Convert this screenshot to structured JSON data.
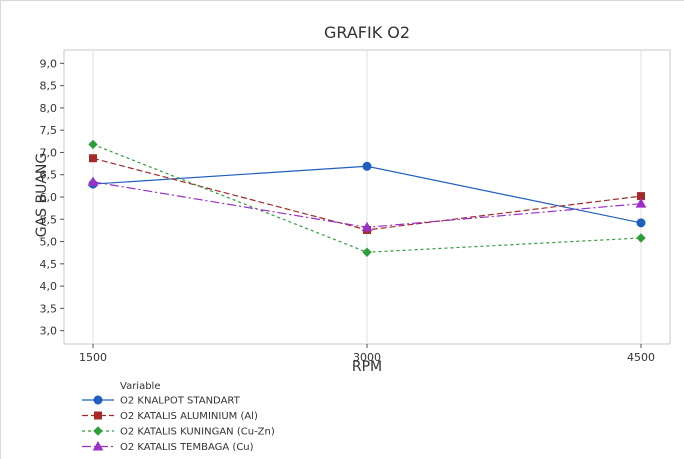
{
  "chart_data": {
    "type": "line",
    "title": "GRAFIK O2",
    "xlabel": "RPM",
    "ylabel": "GAS BUANG",
    "x": [
      1500,
      3000,
      4500
    ],
    "x_tick_labels": [
      "1500",
      "3000",
      "4500"
    ],
    "ylim": [
      2.7,
      9.3
    ],
    "y_ticks": [
      3.0,
      3.5,
      4.0,
      4.5,
      5.0,
      5.5,
      6.0,
      6.5,
      7.0,
      7.5,
      8.0,
      8.5,
      9.0
    ],
    "y_tick_labels": [
      "3,0",
      "3,5",
      "4,0",
      "4,5",
      "5,0",
      "5,5",
      "6,0",
      "6,5",
      "7,0",
      "7,5",
      "8,0",
      "8,5",
      "9,0"
    ],
    "grid": "vertical",
    "legend": {
      "title": "Variable",
      "placement": "bottom-left"
    },
    "series": [
      {
        "name": "O2 KNALPOT STANDART",
        "values": [
          6.29,
          6.69,
          5.42
        ],
        "color": "#1f5fbf",
        "dash": "solid",
        "marker": "circle"
      },
      {
        "name": "O2 KATALIS ALUMINIUM (Al)",
        "values": [
          6.87,
          5.26,
          6.02
        ],
        "color": "#a52a2a",
        "dash": "dash",
        "marker": "square"
      },
      {
        "name": "O2 KATALIS KUNINGAN (Cu-Zn)",
        "values": [
          7.18,
          4.76,
          5.08
        ],
        "color": "#2e9e3a",
        "dash": "dot",
        "marker": "diamond"
      },
      {
        "name": "O2 KATALIS TEMBAGA (Cu)",
        "values": [
          6.34,
          5.32,
          5.85
        ],
        "color": "#9b30c8",
        "dash": "dashdot",
        "marker": "triangle"
      }
    ]
  }
}
